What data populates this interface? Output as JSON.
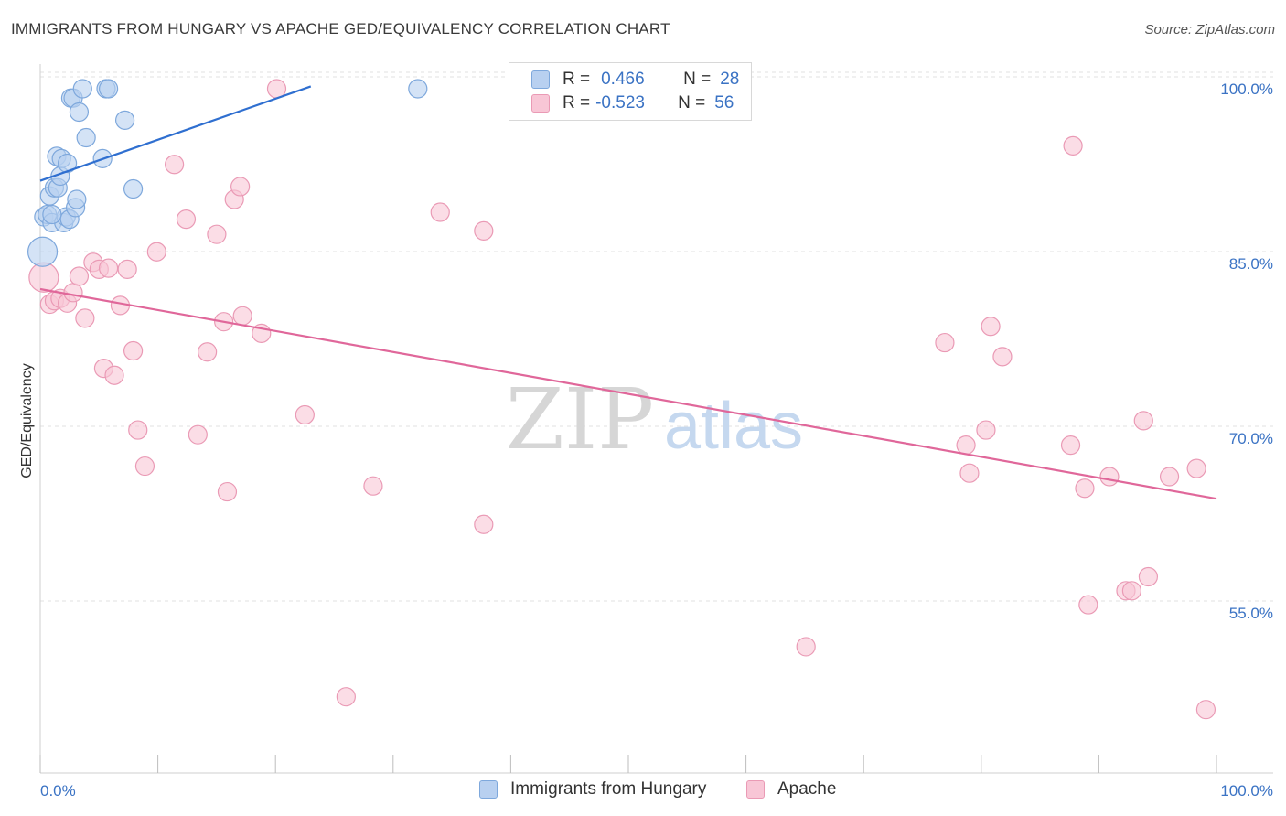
{
  "header": {
    "title": "IMMIGRANTS FROM HUNGARY VS APACHE GED/EQUIVALENCY CORRELATION CHART",
    "source": "Source: ZipAtlas.com"
  },
  "watermark": {
    "zip": "ZIP",
    "atlas": "atlas"
  },
  "legend": {
    "rows": [
      {
        "r_label": "R =",
        "r_value": "0.466",
        "n_label": "N =",
        "n_value": "28"
      },
      {
        "r_label": "R =",
        "r_value": "-0.523",
        "n_label": "N =",
        "n_value": "56"
      }
    ]
  },
  "colors": {
    "blue_fill": "#b8d0f0",
    "blue_stroke": "#7ea8dc",
    "blue_line": "#2f6fd0",
    "pink_fill": "#f8c6d6",
    "pink_stroke": "#ea9ab5",
    "pink_line": "#e0679a",
    "tick_label": "#3b73c4",
    "grid": "#e2e2e2"
  },
  "chart_data": {
    "type": "scatter",
    "title": "IMMIGRANTS FROM HUNGARY VS APACHE GED/EQUIVALENCY CORRELATION CHART",
    "xlabel": "",
    "ylabel": "GED/Equivalency",
    "xlim": [
      0,
      100
    ],
    "ylim": [
      40,
      102.5
    ],
    "x_tick_labels": [
      "0.0%",
      "100.0%"
    ],
    "y_ticks": [
      55,
      70,
      85,
      100
    ],
    "y_tick_labels": [
      "55.0%",
      "70.0%",
      "85.0%",
      "100.0%"
    ],
    "grid": true,
    "legend_position": "bottom",
    "series": [
      {
        "name": "Immigrants from Hungary",
        "color": "#7ea8dc",
        "r": 0.466,
        "n": 28,
        "trend": [
          [
            0,
            92.1
          ],
          [
            23,
            100.2
          ]
        ],
        "points": [
          [
            0.2,
            86.0,
            16
          ],
          [
            0.3,
            89.0,
            10
          ],
          [
            0.6,
            89.2,
            10
          ],
          [
            0.8,
            90.8,
            10
          ],
          [
            1.0,
            88.5,
            10
          ],
          [
            1.2,
            91.5,
            10
          ],
          [
            1.4,
            94.2,
            10
          ],
          [
            1.5,
            91.5,
            10
          ],
          [
            1.7,
            92.5,
            10
          ],
          [
            1.8,
            94.0,
            10
          ],
          [
            2.0,
            88.5,
            10
          ],
          [
            2.2,
            89.0,
            10
          ],
          [
            2.3,
            93.6,
            10
          ],
          [
            2.5,
            88.8,
            10
          ],
          [
            2.6,
            99.2,
            10
          ],
          [
            2.8,
            99.2,
            10
          ],
          [
            3.0,
            89.8,
            10
          ],
          [
            3.1,
            90.5,
            10
          ],
          [
            3.3,
            98.0,
            10
          ],
          [
            3.6,
            100.0,
            10
          ],
          [
            3.9,
            95.8,
            10
          ],
          [
            5.3,
            94.0,
            10
          ],
          [
            5.6,
            100.0,
            10
          ],
          [
            5.8,
            100.0,
            10
          ],
          [
            7.2,
            97.3,
            10
          ],
          [
            7.9,
            91.4,
            10
          ],
          [
            32.1,
            100.0,
            10
          ],
          [
            1.0,
            89.2,
            10
          ]
        ]
      },
      {
        "name": "Apache",
        "color": "#ea9ab5",
        "r": -0.523,
        "n": 56,
        "trend": [
          [
            0,
            82.8
          ],
          [
            100,
            64.8
          ]
        ],
        "points": [
          [
            0.3,
            83.8,
            16
          ],
          [
            0.8,
            81.5,
            10
          ],
          [
            1.2,
            81.8,
            10
          ],
          [
            1.7,
            82.0,
            10
          ],
          [
            2.3,
            81.6,
            10
          ],
          [
            2.8,
            82.5,
            10
          ],
          [
            3.3,
            83.9,
            10
          ],
          [
            3.8,
            80.3,
            10
          ],
          [
            4.5,
            85.1,
            10
          ],
          [
            5.0,
            84.5,
            10
          ],
          [
            5.4,
            76.0,
            10
          ],
          [
            5.8,
            84.6,
            10
          ],
          [
            6.3,
            75.4,
            10
          ],
          [
            6.8,
            81.4,
            10
          ],
          [
            7.4,
            84.5,
            10
          ],
          [
            7.9,
            77.5,
            10
          ],
          [
            8.3,
            70.7,
            10
          ],
          [
            8.9,
            67.6,
            10
          ],
          [
            9.9,
            86.0,
            10
          ],
          [
            11.4,
            93.5,
            10
          ],
          [
            12.4,
            88.8,
            10
          ],
          [
            13.4,
            70.3,
            10
          ],
          [
            14.2,
            77.4,
            10
          ],
          [
            15.0,
            87.5,
            10
          ],
          [
            15.6,
            80.0,
            10
          ],
          [
            15.9,
            65.4,
            10
          ],
          [
            16.5,
            90.5,
            10
          ],
          [
            17.0,
            91.6,
            10
          ],
          [
            17.2,
            80.5,
            10
          ],
          [
            18.8,
            79.0,
            10
          ],
          [
            20.1,
            100.0,
            10
          ],
          [
            22.5,
            72.0,
            10
          ],
          [
            26.0,
            47.8,
            10
          ],
          [
            28.3,
            65.9,
            10
          ],
          [
            34.0,
            89.4,
            10
          ],
          [
            37.7,
            62.6,
            10
          ],
          [
            37.7,
            87.8,
            10
          ],
          [
            65.1,
            52.1,
            10
          ],
          [
            76.9,
            78.2,
            10
          ],
          [
            78.7,
            69.4,
            10
          ],
          [
            79.0,
            67.0,
            10
          ],
          [
            80.4,
            70.7,
            10
          ],
          [
            80.8,
            79.6,
            10
          ],
          [
            81.8,
            77.0,
            10
          ],
          [
            87.6,
            69.4,
            10
          ],
          [
            87.8,
            95.1,
            10
          ],
          [
            88.8,
            65.7,
            10
          ],
          [
            89.1,
            55.7,
            10
          ],
          [
            90.9,
            66.7,
            10
          ],
          [
            92.3,
            56.9,
            10
          ],
          [
            92.8,
            56.9,
            10
          ],
          [
            94.2,
            58.1,
            10
          ],
          [
            93.8,
            71.5,
            10
          ],
          [
            96.0,
            66.7,
            10
          ],
          [
            98.3,
            67.4,
            10
          ],
          [
            99.1,
            46.7,
            10
          ]
        ]
      }
    ]
  }
}
